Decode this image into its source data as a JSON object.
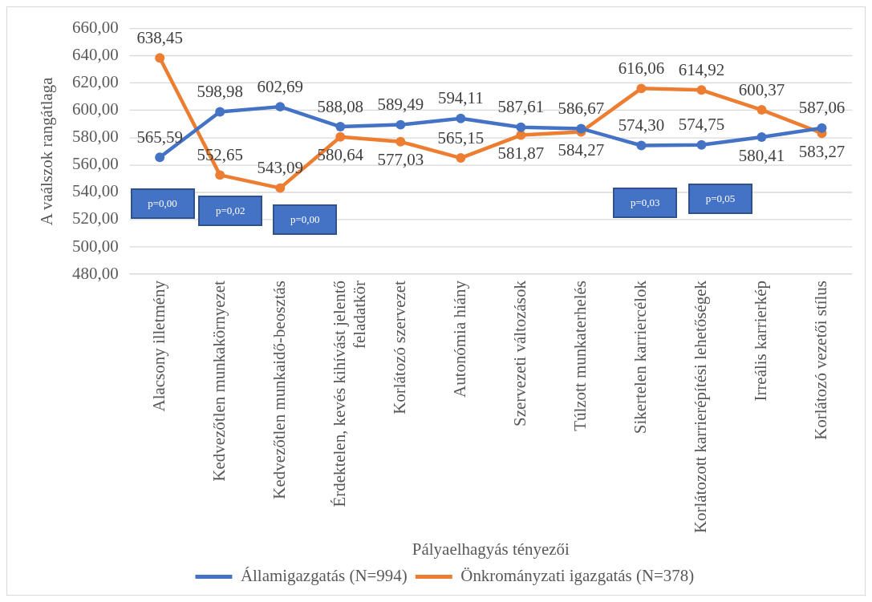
{
  "chart_data": {
    "type": "line",
    "xlabel": "Pályaelhagyás tényezői",
    "ylabel": "A vaálszok rangátlaga",
    "categories": [
      "Alacsony illetmény",
      "Kedvezőtlen munkakörnyezet",
      "Kedvezőtlen munkaidő-beosztás",
      "Érdektelen, kevés kihívást jelentő feladatkör",
      "Korlátozó szervezet",
      "Autonómia hiány",
      "Szervezeti változások",
      "Túlzott munkaterhelés",
      "Sikertelen karriercélok",
      "Korlátozott karrierépítési lehetőségek",
      "Irreális karrierkép",
      "Korlátozó vezetői stílus"
    ],
    "series": [
      {
        "name": "Államigazgatás (N=994)",
        "color": "#4472c4",
        "values": [
          565.59,
          598.98,
          602.69,
          588.08,
          589.49,
          594.11,
          587.61,
          586.67,
          574.3,
          574.75,
          580.41,
          587.06
        ],
        "value_labels": [
          "565,59",
          "598,98",
          "602,69",
          "588,08",
          "589,49",
          "594,11",
          "587,61",
          "586,67",
          "574,30",
          "574,75",
          "580,41",
          "587,06"
        ]
      },
      {
        "name": "Önkrományzati igazgatás (N=378)",
        "color": "#ed7d31",
        "values": [
          638.45,
          552.65,
          543.09,
          580.64,
          577.03,
          565.15,
          581.87,
          584.27,
          616.06,
          614.92,
          600.37,
          583.27
        ],
        "value_labels": [
          "638,45",
          "552,65",
          "543,09",
          "580,64",
          "577,03",
          "565,15",
          "581,87",
          "584,27",
          "616,06",
          "614,92",
          "600,37",
          "583,27"
        ]
      }
    ],
    "ylim": [
      480,
      660
    ],
    "yticks": [
      {
        "value": 480,
        "label": "480,00"
      },
      {
        "value": 500,
        "label": "500,00"
      },
      {
        "value": 520,
        "label": "520,00"
      },
      {
        "value": 540,
        "label": "540,00"
      },
      {
        "value": 560,
        "label": "560,00"
      },
      {
        "value": 580,
        "label": "580,00"
      },
      {
        "value": 600,
        "label": "600,00"
      },
      {
        "value": 620,
        "label": "620,00"
      },
      {
        "value": 640,
        "label": "640,00"
      },
      {
        "value": 660,
        "label": "660,00"
      }
    ],
    "grid": "y",
    "legend": "bottom",
    "marker": "circle",
    "line_style": "solid",
    "annotations": [
      "p=0,00",
      "p=0,02",
      "p=0,00",
      "p=0,03",
      "p=0,05"
    ]
  }
}
